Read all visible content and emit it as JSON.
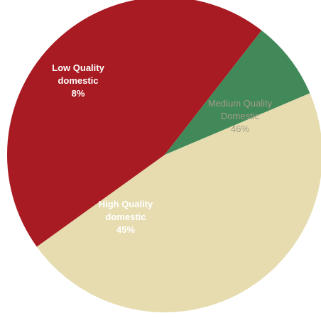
{
  "chart_data": {
    "type": "pie",
    "title": "",
    "start_angle_deg": -23,
    "direction": "clockwise",
    "slices": [
      {
        "label": "Medium Quality Domestic",
        "label_lines": [
          "Medium Quality",
          "Domestic",
          "46%"
        ],
        "value": 46,
        "color": "#e6dcb0",
        "text_color": "#a39c86",
        "bold": false
      },
      {
        "label": "High Quality domestic",
        "label_lines": [
          "High Quality",
          "domestic",
          "45%"
        ],
        "value": 45,
        "color": "#a81b22",
        "text_color": "#ffffff",
        "bold": true
      },
      {
        "label": "Low Quality domestic",
        "label_lines": [
          "Low Quality",
          "domestic",
          "8%"
        ],
        "value": 8,
        "color": "#42895a",
        "text_color": "#ffffff",
        "bold": true
      }
    ]
  }
}
